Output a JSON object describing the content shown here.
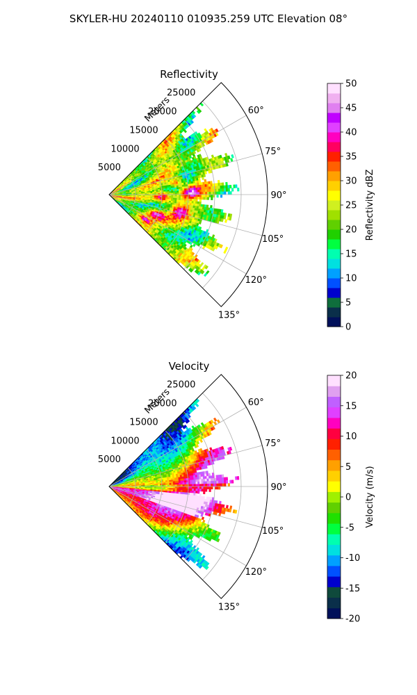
{
  "figure": {
    "suptitle": "SKYLER-HU  20240110  010935.259 UTC Elevation 08°"
  },
  "chart_data": [
    {
      "type": "heatmap",
      "projection": "polar-sector",
      "title": "Reflectivity",
      "range_label": "Meters",
      "range_ticks": [
        5000,
        10000,
        15000,
        20000,
        25000
      ],
      "range_max": 30000,
      "azimuth_range_deg": [
        45,
        135
      ],
      "azimuth_ticks": [
        "60°",
        "75°",
        "90°",
        "105°",
        "120°",
        "135°"
      ],
      "grid": true,
      "colorbar": {
        "label": "Reflectivity dBZ",
        "ticks": [
          0,
          5,
          10,
          15,
          20,
          25,
          30,
          35,
          40,
          45,
          50
        ],
        "vmin": 0,
        "vmax": 50,
        "colors": [
          "#00105a",
          "#0a2f4a",
          "#0f6e3c",
          "#0000cc",
          "#0050ff",
          "#00a0ff",
          "#00e0e0",
          "#00ffb0",
          "#00ff40",
          "#20d000",
          "#60d000",
          "#a0e000",
          "#d0f020",
          "#ffff00",
          "#ffd000",
          "#ffa000",
          "#ff6000",
          "#ff2000",
          "#ff0060",
          "#ff00c0",
          "#e040ff",
          "#c000ff",
          "#e080f0",
          "#f0b0f0",
          "#ffe0ff"
        ]
      },
      "data_note": "",
      "data_extent_m": 25000
    },
    {
      "type": "heatmap",
      "projection": "polar-sector",
      "title": "Velocity",
      "range_label": "Meters",
      "range_ticks": [
        5000,
        10000,
        15000,
        20000,
        25000
      ],
      "range_max": 30000,
      "azimuth_range_deg": [
        45,
        135
      ],
      "azimuth_ticks": [
        "60°",
        "75°",
        "90°",
        "105°",
        "120°",
        "135°"
      ],
      "grid": true,
      "colorbar": {
        "label": "Velocity (m/s)",
        "ticks": [
          -20,
          -15,
          -10,
          -5,
          0,
          5,
          10,
          15,
          20
        ],
        "vmin": -20,
        "vmax": 20,
        "colors": [
          "#00105a",
          "#0a2f4a",
          "#0f4a3c",
          "#0000cc",
          "#0050ff",
          "#00a0ff",
          "#00e0e0",
          "#00ffb0",
          "#00ff40",
          "#20e000",
          "#60d000",
          "#a0f000",
          "#ffff00",
          "#ffd000",
          "#ffa000",
          "#ff6000",
          "#ff2000",
          "#ff0040",
          "#ff00c0",
          "#e040ff",
          "#c060ff",
          "#e0a0f0",
          "#ffe0ff"
        ]
      },
      "data_extent_m": 25000
    }
  ]
}
